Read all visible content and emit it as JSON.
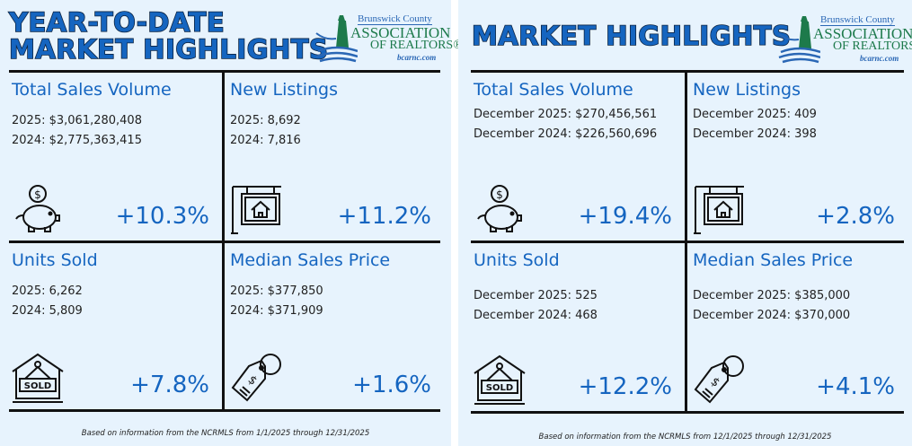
{
  "colors": {
    "accent": "#1565c0",
    "background": "#e7f3fd",
    "logo_green": "#1d7a4b",
    "logo_blue": "#2a67b5"
  },
  "logo": {
    "line1": "Brunswick County",
    "line2": "ASSOCIATION",
    "line3": "OF REALTORS®",
    "url": "bcarnc.com"
  },
  "panels": [
    {
      "title_lines": [
        "YEAR-TO-DATE",
        "MARKET HIGHLIGHTS"
      ],
      "cells": [
        {
          "heading": "Total Sales Volume",
          "values": [
            "2025: $3,061,280,408",
            "2024: $2,775,363,415"
          ],
          "change": "+10.3%",
          "icon": "piggy-bank-icon"
        },
        {
          "heading": "New Listings",
          "values": [
            "2025: 8,692",
            "2024: 7,816"
          ],
          "change": "+11.2%",
          "icon": "house-sign-icon"
        },
        {
          "heading": "Units Sold",
          "values": [
            "2025: 6,262",
            "2024: 5,809"
          ],
          "change": "+7.8%",
          "icon": "sold-house-icon",
          "sold_label": "SOLD"
        },
        {
          "heading": "Median Sales Price",
          "values": [
            "2025: $377,850",
            "2024: $371,909"
          ],
          "change": "+1.6%",
          "icon": "price-tag-icon"
        }
      ],
      "footnote": "Based on information from the NCRMLS from 1/1/2025 through 12/31/2025"
    },
    {
      "title_lines": [
        "MARKET HIGHLIGHTS"
      ],
      "cells": [
        {
          "heading": "Total Sales Volume",
          "values": [
            "December 2025: $270,456,561",
            "December 2024: $226,560,696"
          ],
          "change": "+19.4%",
          "icon": "piggy-bank-icon"
        },
        {
          "heading": "New Listings",
          "values": [
            "December 2025: 409",
            "December 2024: 398"
          ],
          "change": "+2.8%",
          "icon": "house-sign-icon"
        },
        {
          "heading": "Units Sold",
          "values": [
            "December 2025: 525",
            "December 2024: 468"
          ],
          "change": "+12.2%",
          "icon": "sold-house-icon",
          "sold_label": "SOLD"
        },
        {
          "heading": "Median Sales Price",
          "values": [
            "December 2025: $385,000",
            "December 2024: $370,000"
          ],
          "change": "+4.1%",
          "icon": "price-tag-icon"
        }
      ],
      "footnote": "Based on information from the NCRMLS from 12/1/2025 through 12/31/2025"
    }
  ]
}
